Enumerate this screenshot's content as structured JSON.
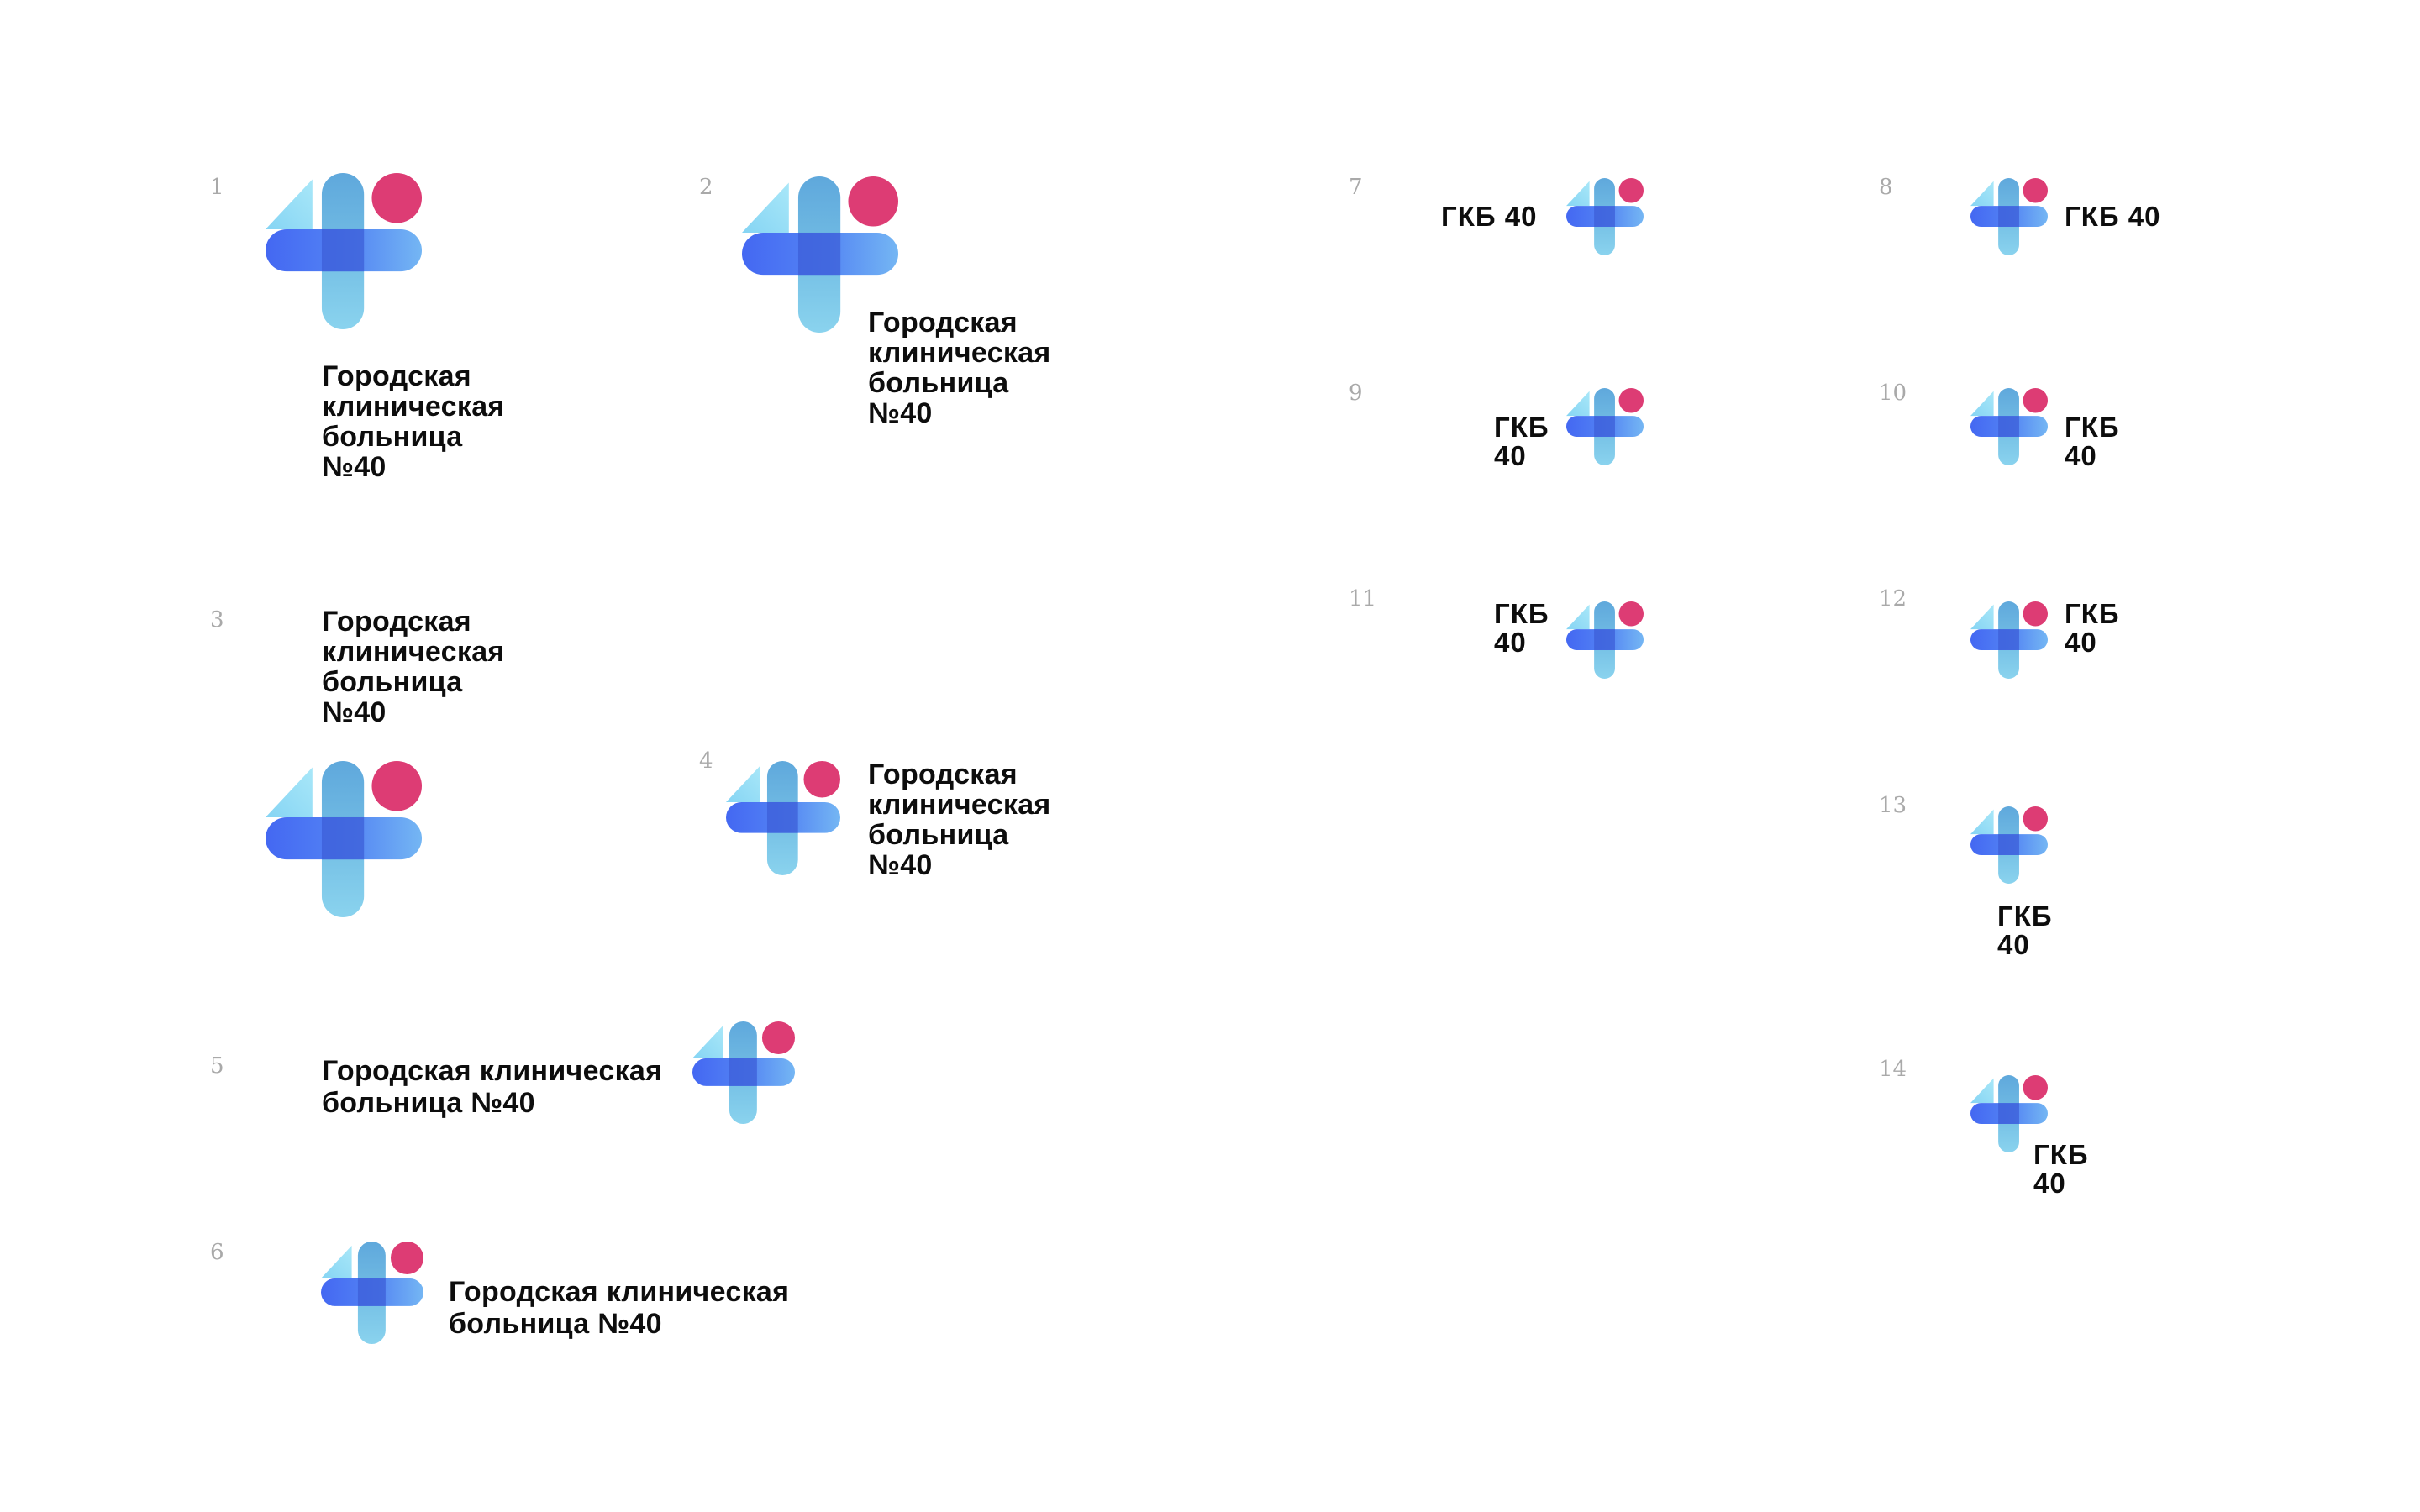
{
  "variants": [
    {
      "number": "1",
      "wordmark": "Городская\nклиническая\nбольница\n№40"
    },
    {
      "number": "2",
      "wordmark": "Городская\nклиническая\nбольница\n№40"
    },
    {
      "number": "3",
      "wordmark": "Городская\nклиническая\nбольница\n№40"
    },
    {
      "number": "4",
      "wordmark": "Городская\nклиническая\nбольница\n№40"
    },
    {
      "number": "5",
      "wordmark": "Городская клиническая\nбольница №40"
    },
    {
      "number": "6",
      "wordmark": "Городская клиническая\nбольница №40"
    },
    {
      "number": "7",
      "wordmark": "ГКБ 40"
    },
    {
      "number": "8",
      "wordmark": "ГКБ 40"
    },
    {
      "number": "9",
      "wordmark": "ГКБ\n40"
    },
    {
      "number": "10",
      "wordmark": "ГКБ\n40"
    },
    {
      "number": "11",
      "wordmark": "ГКБ\n40"
    },
    {
      "number": "12",
      "wordmark": "ГКБ\n40"
    },
    {
      "number": "13",
      "wordmark": "ГКБ\n40"
    },
    {
      "number": "14",
      "wordmark": "ГКБ\n40"
    }
  ],
  "colors": {
    "background": "#ffffff",
    "wordmark": "#0d0d0d",
    "number": "#a9a9a9",
    "dot": "#dd3c74",
    "bar_blue": "#3e63f2",
    "bar_light_blue": "#6fb2f2",
    "cross_overlap": "#3d5fd8",
    "stem_top": "#63b0e0",
    "stem_bottom": "#86d0ec",
    "triangle": "#8fdcf5"
  },
  "icons": {
    "logo": "medical-cross-logo-icon"
  }
}
